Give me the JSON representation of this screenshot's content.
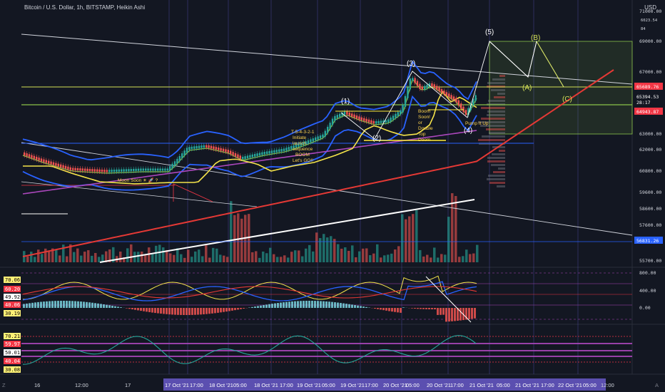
{
  "header": {
    "title": "Bitcoin / U.S. Dollar, 1h, BITSTAMP, Heikin Ashi",
    "currency": "USD"
  },
  "price_axis": {
    "ticks": [
      "71000.00",
      "69000.00",
      "67000.00",
      "63000.00",
      "62000.00",
      "60800.00",
      "59600.00",
      "58600.00",
      "57600.00",
      "55700.00"
    ],
    "top_small": [
      "6023.54",
      "84"
    ],
    "badges": [
      {
        "text": "65689.76",
        "color": "#f23645"
      },
      {
        "text": "65394.53",
        "color": "#131722"
      },
      {
        "text": "28:17",
        "color": "#131722"
      },
      {
        "text": "64943.87",
        "color": "#f23645"
      },
      {
        "text": "56831.26",
        "color": "#2962ff"
      }
    ]
  },
  "macd_axis": {
    "ticks": [
      "800.00",
      "400.00",
      "0.00"
    ]
  },
  "left_scales": {
    "panel2": [
      {
        "text": "70.06",
        "bg": "#fff176",
        "fg": "#000"
      },
      {
        "text": "60.20",
        "bg": "#f23645",
        "fg": "#fff"
      },
      {
        "text": "49.92",
        "bg": "#ffffff",
        "fg": "#000"
      },
      {
        "text": "40.06",
        "bg": "#f23645",
        "fg": "#fff"
      },
      {
        "text": "30.19",
        "bg": "#fff176",
        "fg": "#000"
      }
    ],
    "panel3": [
      {
        "text": "70.21",
        "bg": "#fff176",
        "fg": "#000"
      },
      {
        "text": "59.97",
        "bg": "#f23645",
        "fg": "#fff"
      },
      {
        "text": "50.01",
        "bg": "#ffffff",
        "fg": "#000"
      },
      {
        "text": "40.04",
        "bg": "#f23645",
        "fg": "#fff"
      },
      {
        "text": "30.08",
        "bg": "#fff176",
        "fg": "#000"
      }
    ]
  },
  "time_axis": {
    "plain": [
      "16",
      "12:00",
      "17"
    ],
    "highlighted": [
      "17 Oct '21",
      "17:00",
      "18 Oct '21",
      "05:00",
      "18 Oct '21",
      "17:00",
      "19 Oct '21",
      "05:00",
      "19 Oct '21",
      "17:00",
      "20 Oct '21",
      "05:00",
      "20 Oct '21",
      "17:00",
      "21 Oct '21",
      "05:00",
      "21 Oct '21",
      "17:00",
      "22 Oct '21",
      "05:00"
    ],
    "tail": [
      "12:00"
    ],
    "highlight_color": "#5b4fb0"
  },
  "annotations": {
    "waves": [
      "(1)",
      "(2)",
      "(3)",
      "(4)",
      "(5)"
    ],
    "correction": [
      "(A)",
      "(B)",
      "(C)"
    ],
    "moon": "Moon Soon ☀ 🚀 ?",
    "countdown": [
      "T-5-4-3-2-1",
      "Initiate",
      "launch",
      "sequence",
      "BOOM",
      "Let's GO!!"
    ],
    "boom": [
      "Boom",
      "Soon!",
      "or",
      "Double",
      "Top",
      "Doom"
    ],
    "pump": "Pump It Up"
  },
  "bottom_bar": {
    "left_glyph": "Z",
    "right_glyph": "A"
  },
  "colors": {
    "bg": "#131722",
    "bull": "#26a69a",
    "bear": "#ef5350",
    "band": "#2962ff",
    "ma_yellow": "#f5e44a",
    "ma_red": "#e53935",
    "ma_purple": "#ab47bc",
    "projection": "#d4e157"
  }
}
